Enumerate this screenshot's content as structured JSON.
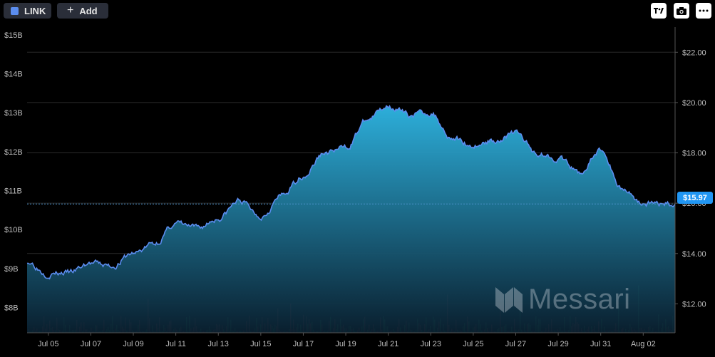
{
  "toolbar": {
    "asset_label": "LINK",
    "asset_color": "#5b8def",
    "add_label": "Add",
    "icons": [
      "tradingview-logo-icon",
      "camera-icon",
      "more-icon"
    ]
  },
  "watermark": {
    "text": "Messari"
  },
  "colors": {
    "line": "#5b8def",
    "area_top": "#2fb8e6",
    "area_bottom": "#0a2030",
    "price_tag": "#2196f3",
    "vol_up": "#1f7a3a",
    "vol_down": "#8a2a2a"
  },
  "chart_data": {
    "type": "area",
    "series": [
      {
        "axis": "price",
        "x": [
          "2023-07-04",
          "2023-07-05",
          "2023-07-06",
          "2023-07-07",
          "2023-07-08",
          "2023-07-09",
          "2023-07-10",
          "2023-07-11",
          "2023-07-12",
          "2023-07-13",
          "2023-07-14",
          "2023-07-15",
          "2023-07-16",
          "2023-07-17",
          "2023-07-18",
          "2023-07-19",
          "2023-07-20",
          "2023-07-21",
          "2023-07-22",
          "2023-07-23",
          "2023-07-24",
          "2023-07-25",
          "2023-07-26",
          "2023-07-27",
          "2023-07-28",
          "2023-07-29",
          "2023-07-30",
          "2023-07-31",
          "2023-08-01",
          "2023-08-02",
          "2023-08-03"
        ],
        "y": [
          13.7,
          13.2,
          13.25,
          13.6,
          13.5,
          14.0,
          14.4,
          15.2,
          15.0,
          15.4,
          16.1,
          15.5,
          16.3,
          17.1,
          18.0,
          18.2,
          19.3,
          19.9,
          19.5,
          19.6,
          18.6,
          18.3,
          18.5,
          18.8,
          18.0,
          17.8,
          17.2,
          18.1,
          16.6,
          16.0,
          15.97
        ]
      }
    ],
    "volume_note": "volume bars along bottom",
    "last_price_label": "$15.97",
    "x_tick_labels": [
      "Jul 05",
      "Jul 07",
      "Jul 09",
      "Jul 11",
      "Jul 13",
      "Jul 15",
      "Jul 17",
      "Jul 19",
      "Jul 21",
      "Jul 23",
      "Jul 25",
      "Jul 27",
      "Jul 29",
      "Jul 31",
      "Aug 02"
    ],
    "x_tick_dates": [
      "2023-07-05",
      "2023-07-07",
      "2023-07-09",
      "2023-07-11",
      "2023-07-13",
      "2023-07-15",
      "2023-07-17",
      "2023-07-19",
      "2023-07-21",
      "2023-07-23",
      "2023-07-25",
      "2023-07-27",
      "2023-07-29",
      "2023-07-31",
      "2023-08-02"
    ],
    "right_axis": {
      "ticks": [
        12,
        14,
        16,
        18,
        20,
        22
      ],
      "labels": [
        "$12.00",
        "$14.00",
        "$16.00",
        "$18.00",
        "$20.00",
        "$22.00"
      ],
      "range": [
        10.85,
        23.0
      ]
    },
    "left_axis": {
      "ticks": [
        8,
        9,
        10,
        11,
        12,
        13,
        14,
        15
      ],
      "labels": [
        "$8B",
        "$9B",
        "$10B",
        "$11B",
        "$12B",
        "$13B",
        "$14B",
        "$15B"
      ],
      "range": [
        7.35,
        15.2
      ]
    },
    "grid": true
  }
}
